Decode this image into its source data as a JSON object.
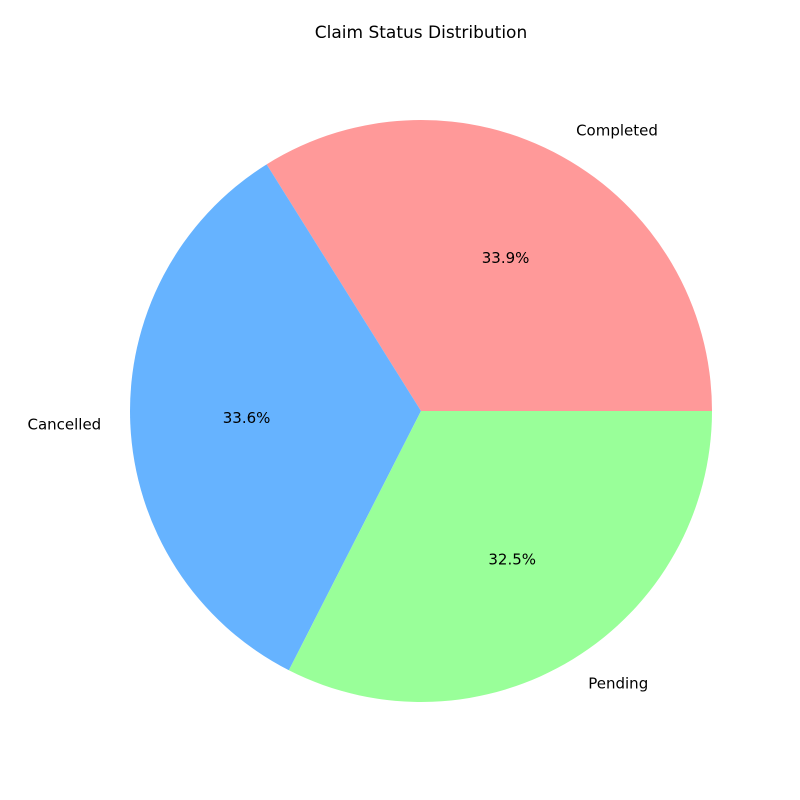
{
  "chart_data": {
    "type": "pie",
    "title": "Claim Status Distribution",
    "categories": [
      "Completed",
      "Cancelled",
      "Pending"
    ],
    "values": [
      33.9,
      33.6,
      32.5
    ],
    "value_labels": [
      "33.9%",
      "33.6%",
      "32.5%"
    ],
    "colors": [
      "#ff9999",
      "#66b3ff",
      "#99ff99"
    ],
    "start_angle_deg": 0,
    "direction": "counterclockwise",
    "legend": "none"
  }
}
